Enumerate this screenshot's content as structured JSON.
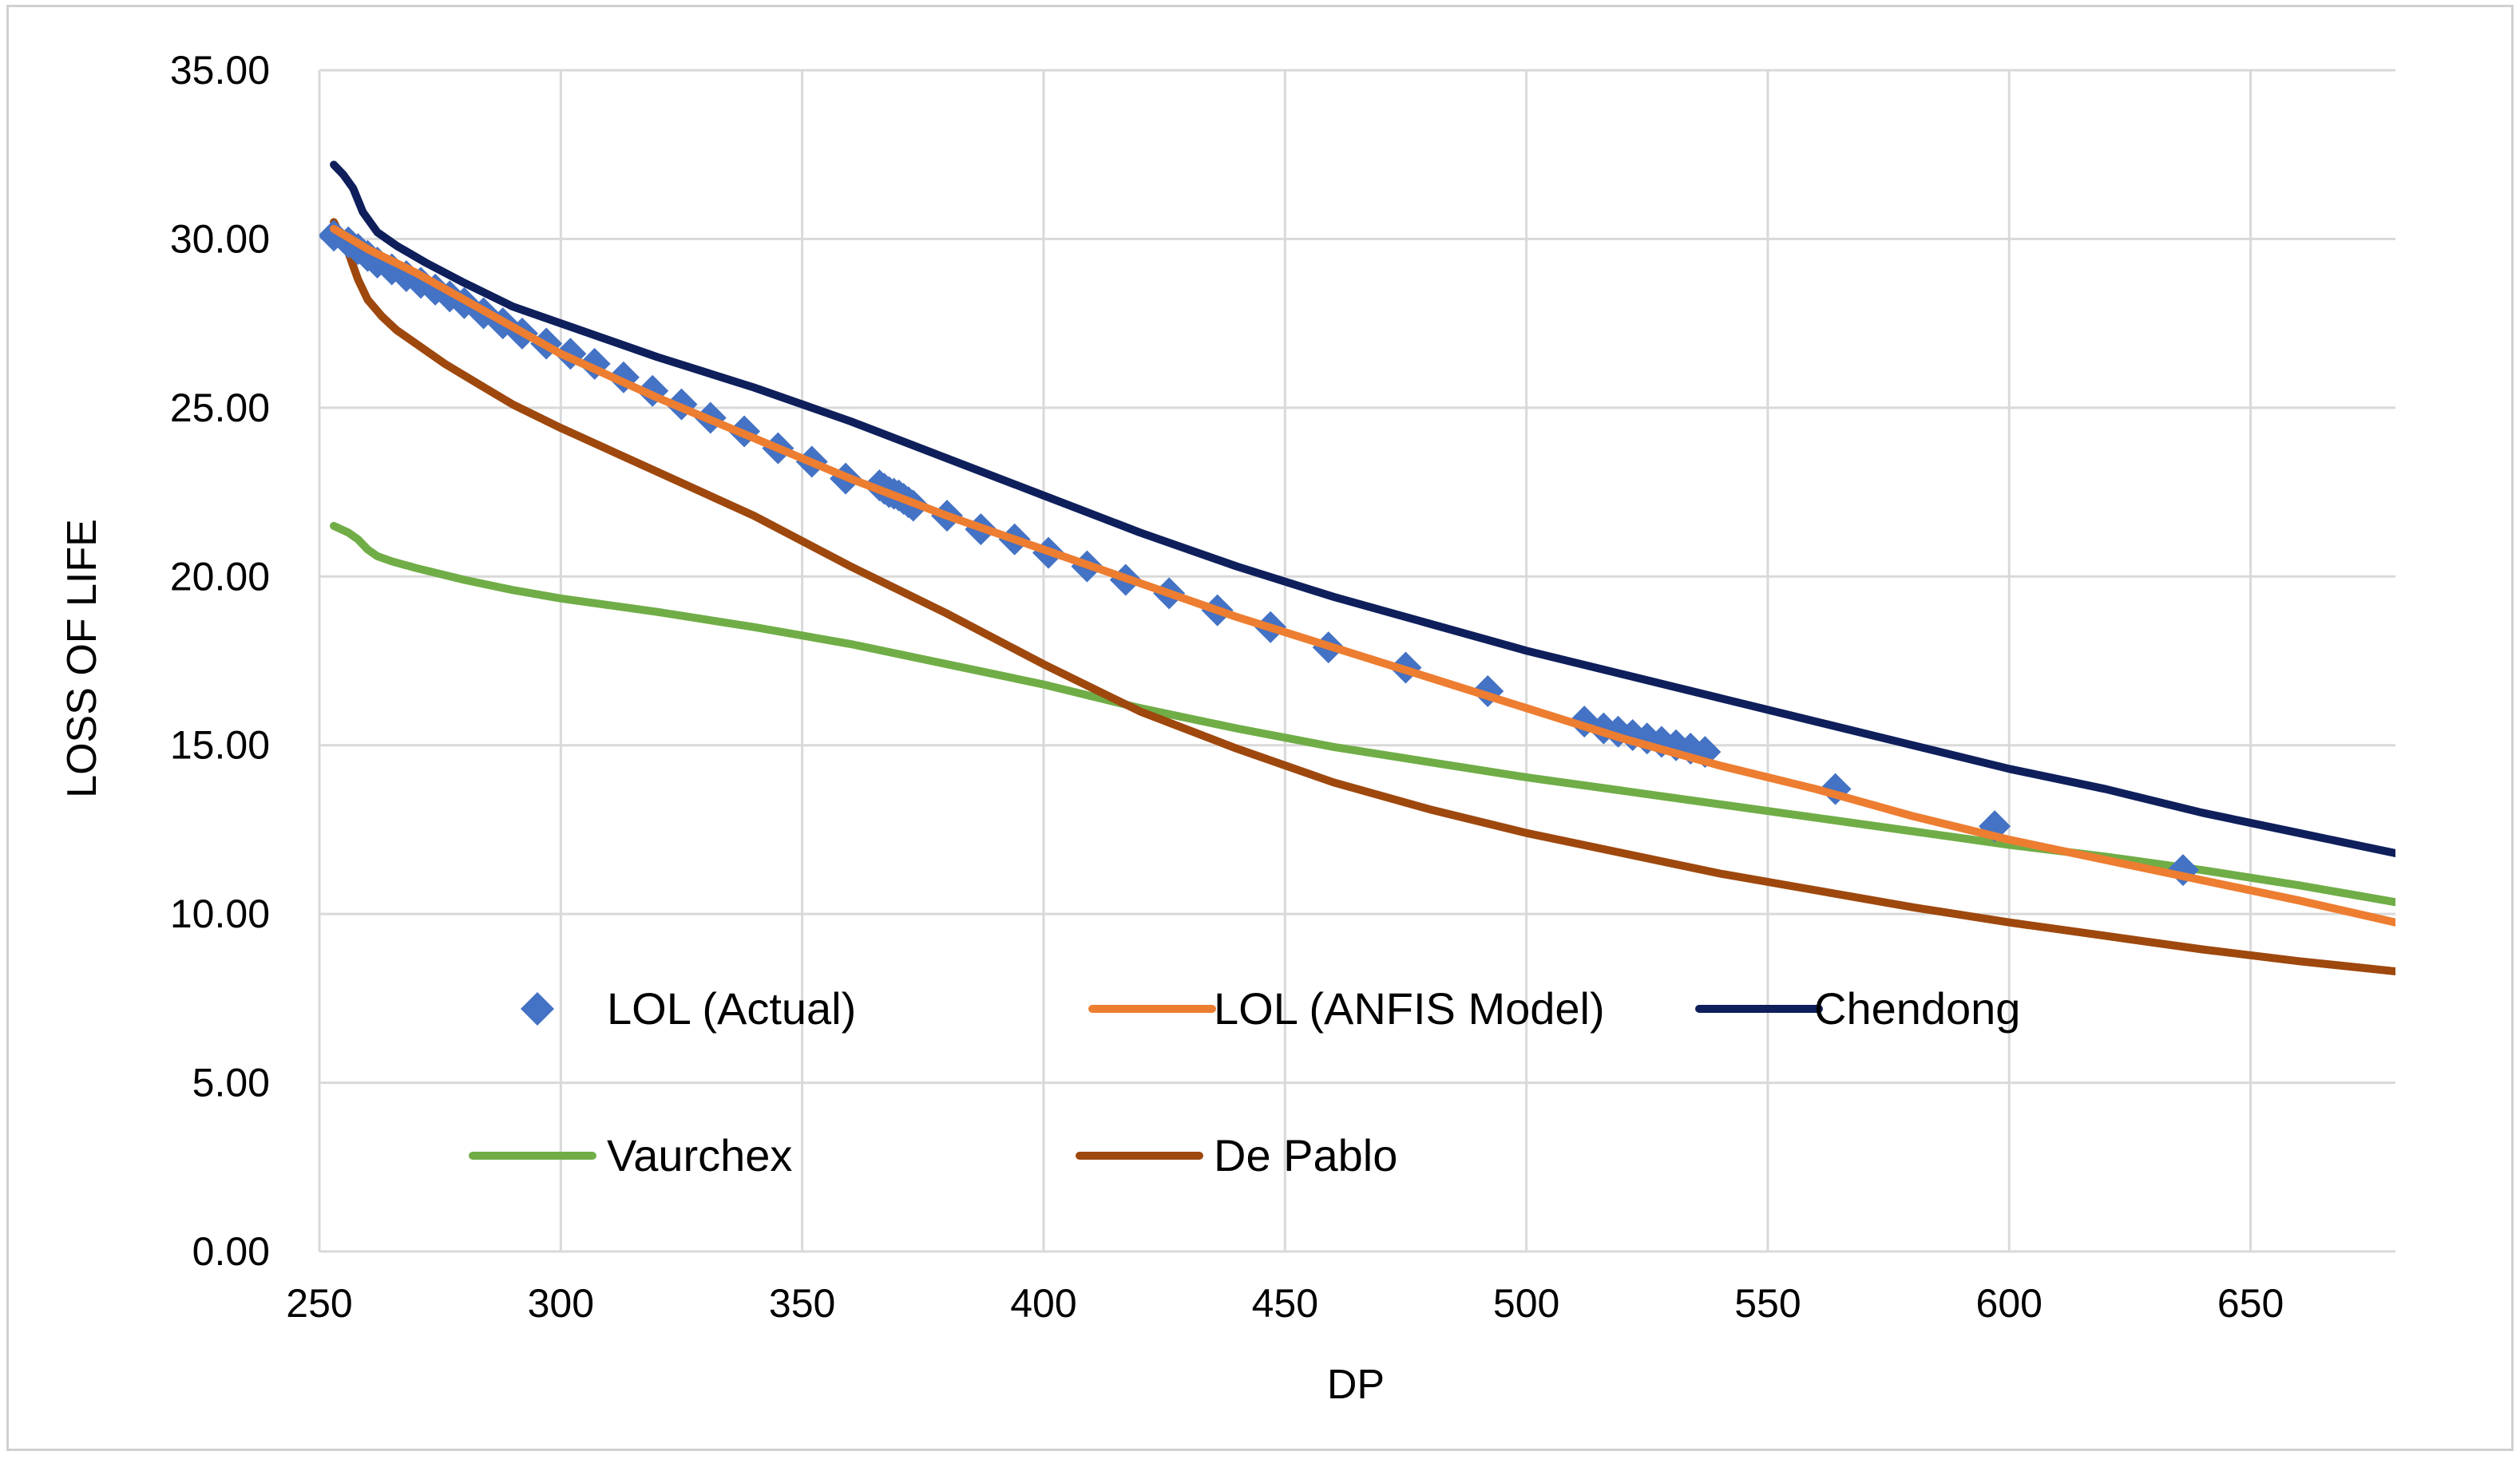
{
  "chart_data": {
    "type": "line",
    "title": "",
    "xlabel": "DP",
    "ylabel": "LOSS OF LIFE",
    "xlim": [
      250,
      680
    ],
    "ylim": [
      0,
      35
    ],
    "xticks": [
      250,
      300,
      350,
      400,
      450,
      500,
      550,
      600,
      650
    ],
    "yticks": [
      0,
      5,
      10,
      15,
      20,
      25,
      30,
      35
    ],
    "ytick_labels": [
      "0.00",
      "5.00",
      "10.00",
      "15.00",
      "20.00",
      "25.00",
      "30.00",
      "35.00"
    ],
    "grid": true,
    "legend_position": "inside-bottom",
    "series": [
      {
        "name": "LOL (Actual)",
        "kind": "scatter",
        "marker": "diamond",
        "color": "#4472C4",
        "x": [
          253,
          256,
          258,
          260,
          262,
          265,
          268,
          271,
          274,
          277,
          280,
          284,
          288,
          292,
          297,
          302,
          307,
          313,
          319,
          325,
          331,
          338,
          345,
          352,
          359,
          366,
          367,
          368,
          369,
          370,
          371,
          372,
          373,
          380,
          387,
          394,
          401,
          409,
          417,
          426,
          436,
          447,
          459,
          475,
          492,
          512,
          516,
          519,
          522,
          525,
          528,
          531,
          534,
          537,
          564,
          597,
          636
        ],
        "y": [
          30.1,
          29.9,
          29.7,
          29.5,
          29.3,
          29.1,
          28.9,
          28.7,
          28.5,
          28.3,
          28.1,
          27.8,
          27.5,
          27.2,
          26.9,
          26.6,
          26.3,
          25.9,
          25.5,
          25.1,
          24.7,
          24.3,
          23.8,
          23.4,
          22.9,
          22.7,
          22.6,
          22.5,
          22.45,
          22.4,
          22.3,
          22.2,
          22.1,
          21.8,
          21.4,
          21.1,
          20.7,
          20.3,
          19.9,
          19.5,
          19.0,
          18.5,
          17.9,
          17.3,
          16.6,
          15.7,
          15.5,
          15.4,
          15.3,
          15.2,
          15.1,
          15.0,
          14.9,
          14.8,
          13.7,
          12.6,
          11.3
        ]
      },
      {
        "name": "LOL (ANFIS Model)",
        "kind": "line",
        "color": "#ED7D31",
        "x": [
          253,
          260,
          270,
          280,
          290,
          300,
          320,
          340,
          360,
          380,
          400,
          420,
          440,
          460,
          480,
          500,
          520,
          540,
          560,
          580,
          600,
          620,
          640,
          660,
          680
        ],
        "y": [
          30.3,
          29.7,
          29.0,
          28.2,
          27.4,
          26.6,
          25.3,
          24.1,
          22.9,
          21.8,
          20.8,
          19.8,
          18.8,
          17.9,
          17.0,
          16.1,
          15.2,
          14.4,
          13.7,
          12.9,
          12.2,
          11.6,
          11.0,
          10.4,
          9.75
        ]
      },
      {
        "name": "Chendong",
        "kind": "line",
        "color": "#0E1F5B",
        "x": [
          253,
          255,
          257,
          259,
          262,
          266,
          272,
          280,
          290,
          300,
          320,
          340,
          360,
          380,
          400,
          420,
          440,
          460,
          480,
          500,
          520,
          540,
          560,
          580,
          600,
          620,
          640,
          660,
          680
        ],
        "y": [
          32.2,
          31.9,
          31.5,
          30.8,
          30.2,
          29.8,
          29.3,
          28.7,
          28.0,
          27.5,
          26.5,
          25.6,
          24.6,
          23.5,
          22.4,
          21.3,
          20.3,
          19.4,
          18.6,
          17.8,
          17.1,
          16.4,
          15.7,
          15.0,
          14.3,
          13.7,
          13.0,
          12.4,
          11.8
        ]
      },
      {
        "name": "Vaurchex",
        "kind": "line",
        "color": "#70AD47",
        "x": [
          253,
          256,
          258,
          260,
          262,
          265,
          270,
          280,
          290,
          300,
          320,
          340,
          360,
          380,
          400,
          420,
          440,
          460,
          480,
          500,
          520,
          540,
          560,
          580,
          600,
          620,
          640,
          660,
          680
        ],
        "y": [
          21.5,
          21.3,
          21.1,
          20.8,
          20.6,
          20.45,
          20.25,
          19.9,
          19.6,
          19.35,
          18.95,
          18.5,
          18.0,
          17.4,
          16.8,
          16.1,
          15.5,
          14.95,
          14.5,
          14.05,
          13.65,
          13.25,
          12.85,
          12.45,
          12.05,
          11.7,
          11.3,
          10.85,
          10.35
        ]
      },
      {
        "name": "De Pablo",
        "kind": "line",
        "color": "#9E480E",
        "x": [
          253,
          256,
          258,
          260,
          263,
          266,
          270,
          276,
          283,
          290,
          300,
          320,
          340,
          360,
          380,
          400,
          420,
          440,
          460,
          480,
          500,
          520,
          540,
          560,
          580,
          600,
          620,
          640,
          660,
          680
        ],
        "y": [
          30.5,
          29.6,
          28.8,
          28.2,
          27.7,
          27.3,
          26.9,
          26.3,
          25.7,
          25.1,
          24.4,
          23.1,
          21.8,
          20.3,
          18.9,
          17.4,
          16.0,
          14.9,
          13.9,
          13.1,
          12.4,
          11.8,
          11.2,
          10.7,
          10.2,
          9.75,
          9.35,
          8.95,
          8.6,
          8.3
        ]
      }
    ]
  }
}
